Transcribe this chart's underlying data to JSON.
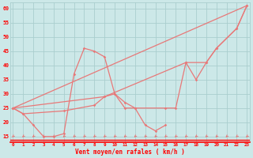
{
  "x_all": [
    0,
    1,
    2,
    3,
    4,
    5,
    6,
    7,
    8,
    9,
    10,
    11,
    12,
    13,
    14,
    15,
    16,
    17,
    18,
    19,
    20,
    21,
    22,
    23
  ],
  "line1_x": [
    0,
    1,
    2,
    3,
    4,
    5,
    6,
    7,
    8,
    9,
    10,
    11,
    12,
    13,
    14,
    15
  ],
  "line1_y": [
    25,
    23,
    19,
    15,
    15,
    16,
    37,
    46,
    45,
    43,
    30,
    27,
    25,
    19,
    17,
    19
  ],
  "line2_x": [
    0,
    1,
    5,
    8,
    9,
    10,
    11,
    12,
    15,
    16,
    17,
    18,
    19,
    20,
    22,
    23
  ],
  "line2_y": [
    25,
    23,
    24,
    26,
    29,
    30,
    25,
    25,
    25,
    25,
    41,
    35,
    41,
    46,
    53,
    61
  ],
  "line3_x": [
    0,
    9,
    17,
    19,
    20,
    22,
    23
  ],
  "line3_y": [
    25,
    29,
    41,
    41,
    46,
    53,
    61
  ],
  "line4_x": [
    0,
    23
  ],
  "line4_y": [
    25,
    61
  ],
  "bg_color": "#cce8e8",
  "grid_color": "#aacece",
  "line_color": "#e87878",
  "xlabel": "Vent moyen/en rafales ( km/h )",
  "yticks": [
    15,
    20,
    25,
    30,
    35,
    40,
    45,
    50,
    55,
    60
  ],
  "xlim": [
    0,
    23
  ],
  "ylim": [
    13,
    62
  ]
}
